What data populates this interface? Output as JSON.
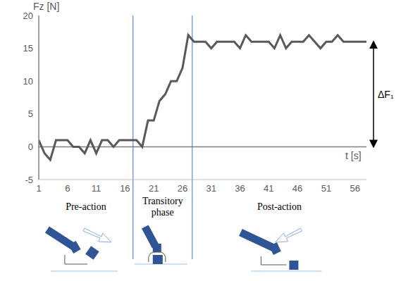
{
  "chart_data": {
    "type": "line",
    "x_label": "t [s]",
    "y_label": "Fz [N]",
    "x": [
      1,
      2,
      3,
      4,
      5,
      6,
      7,
      8,
      9,
      10,
      11,
      12,
      13,
      14,
      15,
      16,
      17,
      18,
      19,
      20,
      21,
      22,
      23,
      24,
      25,
      26,
      27,
      28,
      29,
      30,
      31,
      32,
      33,
      34,
      35,
      36,
      37,
      38,
      39,
      40,
      41,
      42,
      43,
      44,
      45,
      46,
      47,
      48,
      49,
      50,
      51,
      52,
      53,
      54,
      55,
      56,
      57,
      58
    ],
    "values": [
      1,
      -1,
      -2,
      1,
      1,
      1,
      0,
      0,
      -1,
      1,
      -1,
      1,
      1,
      0,
      1,
      1,
      1,
      1,
      0,
      4,
      4,
      7,
      8,
      10,
      10,
      12,
      17,
      16,
      16,
      16,
      15,
      16,
      16,
      16,
      16,
      15,
      17,
      16,
      16,
      16,
      16,
      15,
      17,
      15,
      16,
      16,
      16,
      17,
      16,
      15,
      16,
      16,
      17,
      16,
      16,
      16,
      16,
      16
    ],
    "color": "#595959",
    "xlim": [
      1,
      58
    ],
    "xticks": [
      1,
      6,
      11,
      16,
      21,
      26,
      31,
      36,
      41,
      46,
      51,
      56
    ],
    "ylim": [
      -5,
      20
    ],
    "yticks": [
      -5,
      0,
      5,
      10,
      15,
      20
    ],
    "grid": false,
    "phase_boundaries": [
      17.4,
      27.7
    ],
    "phase_labels": [
      "Pre-action",
      "Transitory phase",
      "Post-action"
    ],
    "annotation": {
      "label": "ΔF₁",
      "from": 0,
      "to": 16
    }
  }
}
